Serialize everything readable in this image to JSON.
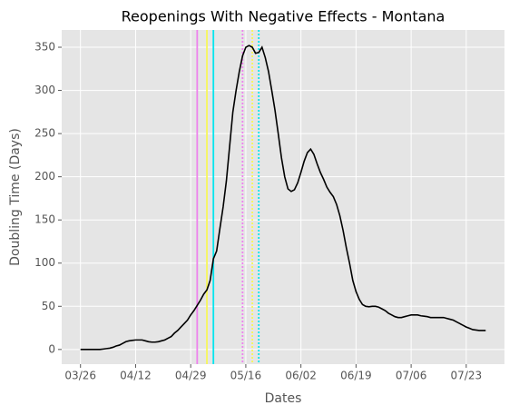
{
  "chart_data": {
    "type": "line",
    "title": "Reopenings With Negative Effects - Montana",
    "x_label": "Dates",
    "y_label": "Doubling Time (Days)",
    "categories": [
      "03/26",
      "03/27",
      "03/28",
      "03/29",
      "03/30",
      "03/31",
      "04/01",
      "04/02",
      "04/03",
      "04/04",
      "04/05",
      "04/06",
      "04/07",
      "04/08",
      "04/09",
      "04/10",
      "04/11",
      "04/12",
      "04/13",
      "04/14",
      "04/15",
      "04/16",
      "04/17",
      "04/18",
      "04/19",
      "04/20",
      "04/21",
      "04/22",
      "04/23",
      "04/24",
      "04/25",
      "04/26",
      "04/27",
      "04/28",
      "04/29",
      "04/30",
      "05/01",
      "05/02",
      "05/03",
      "05/04",
      "05/05",
      "05/06",
      "05/07",
      "05/08",
      "05/09",
      "05/10",
      "05/11",
      "05/12",
      "05/13",
      "05/14",
      "05/15",
      "05/16",
      "05/17",
      "05/18",
      "05/19",
      "05/20",
      "05/21",
      "05/22",
      "05/23",
      "05/24",
      "05/25",
      "05/26",
      "05/27",
      "05/28",
      "05/29",
      "05/30",
      "05/31",
      "06/01",
      "06/02",
      "06/03",
      "06/04",
      "06/05",
      "06/06",
      "06/07",
      "06/08",
      "06/09",
      "06/10",
      "06/11",
      "06/12",
      "06/13",
      "06/14",
      "06/15",
      "06/16",
      "06/17",
      "06/18",
      "06/19",
      "06/20",
      "06/21",
      "06/22",
      "06/23",
      "06/24",
      "06/25",
      "06/26",
      "06/27",
      "06/28",
      "06/29",
      "06/30",
      "07/01",
      "07/02",
      "07/03",
      "07/04",
      "07/05",
      "07/06",
      "07/07",
      "07/08",
      "07/09",
      "07/10",
      "07/11",
      "07/12",
      "07/13",
      "07/14",
      "07/15",
      "07/16",
      "07/17",
      "07/18",
      "07/19",
      "07/20",
      "07/21",
      "07/22",
      "07/23",
      "07/24",
      "07/25",
      "07/26",
      "07/27",
      "07/28",
      "07/29"
    ],
    "series": [
      {
        "name": "Doubling Time",
        "color": "#000000",
        "values": [
          0,
          0,
          0,
          0,
          0,
          0,
          0,
          0.5,
          1,
          1.5,
          2.5,
          4,
          5,
          7,
          9,
          10,
          10.5,
          11,
          11,
          11,
          10,
          9,
          8.5,
          8.5,
          9,
          10,
          11,
          13,
          15,
          19,
          22,
          26,
          30,
          34,
          40,
          45,
          51,
          57,
          64,
          69,
          80,
          105,
          114,
          140,
          165,
          195,
          235,
          275,
          300,
          322,
          340,
          350,
          352,
          350,
          343,
          344,
          350,
          338,
          322,
          300,
          277,
          250,
          222,
          200,
          186,
          183,
          185,
          193,
          205,
          218,
          228,
          232,
          226,
          215,
          205,
          197,
          188,
          182,
          177,
          168,
          155,
          138,
          118,
          100,
          80,
          67,
          58,
          52,
          50,
          49.5,
          50,
          50,
          49,
          47,
          45,
          42,
          40,
          38,
          37,
          37,
          38,
          39,
          40,
          40,
          40,
          39,
          38.5,
          38,
          37,
          37,
          37,
          37,
          37,
          36,
          35,
          34,
          32,
          30,
          28,
          26,
          24.5,
          23,
          22.5,
          22,
          22,
          22
        ]
      }
    ],
    "vlines": [
      {
        "x": "05/01",
        "color": "#ee82ee",
        "style": "solid"
      },
      {
        "x": "05/04",
        "color": "#f7f75a",
        "style": "solid"
      },
      {
        "x": "05/06",
        "color": "#00e5ee",
        "style": "solid"
      },
      {
        "x": "05/15",
        "color": "#ee82ee",
        "style": "dotted"
      },
      {
        "x": "05/18",
        "color": "#f7f75a",
        "style": "dotted"
      },
      {
        "x": "05/20",
        "color": "#00e5ee",
        "style": "dotted"
      }
    ],
    "xticks": [
      "03/26",
      "04/12",
      "04/29",
      "05/16",
      "06/02",
      "06/19",
      "07/06",
      "07/23"
    ],
    "ylim": [
      -17,
      370
    ],
    "yticks": [
      0,
      50,
      100,
      150,
      200,
      250,
      300,
      350
    ],
    "grid": true
  }
}
